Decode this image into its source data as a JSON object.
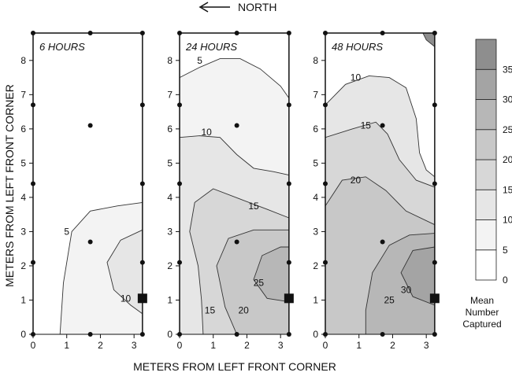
{
  "figure": {
    "north_label": "NORTH",
    "x_axis_label": "METERS FROM LEFT FRONT CORNER",
    "y_axis_label": "METERS FROM LEFT FRONT CORNER",
    "colorbar_title": [
      "Mean",
      "Number",
      "Captured"
    ],
    "icons": {
      "north_arrow": "left-arrow-icon",
      "trap": "filled-square-icon",
      "sample": "filled-circle-icon"
    }
  },
  "chart_data": [
    {
      "type": "contour",
      "title": "6 HOURS",
      "xlim": [
        0,
        3.3
      ],
      "ylim": [
        0,
        8.8
      ],
      "x_ticks": [
        0,
        1,
        2,
        3
      ],
      "y_ticks": [
        0,
        1,
        2,
        3,
        4,
        5,
        6,
        7,
        8
      ],
      "contour_labels": [
        {
          "value": 5,
          "x": 1.0,
          "y": 3.0
        },
        {
          "value": 10,
          "x": 2.75,
          "y": 1.05
        }
      ],
      "contours": [
        {
          "level": 5,
          "points": [
            [
              0.8,
              0
            ],
            [
              0.9,
              1.5
            ],
            [
              1.15,
              3.0
            ],
            [
              1.7,
              3.6
            ],
            [
              2.5,
              3.75
            ],
            [
              3.25,
              3.85
            ]
          ]
        },
        {
          "level": 10,
          "points": [
            [
              3.25,
              0.6
            ],
            [
              2.9,
              0.85
            ],
            [
              2.4,
              1.3
            ],
            [
              2.2,
              2.1
            ],
            [
              2.6,
              2.75
            ],
            [
              3.25,
              3.05
            ]
          ]
        }
      ],
      "sample_points": [
        [
          0,
          0
        ],
        [
          1.7,
          0
        ],
        [
          3.25,
          0
        ],
        [
          0,
          2.1
        ],
        [
          3.25,
          2.1
        ],
        [
          1.7,
          2.7
        ],
        [
          0,
          4.4
        ],
        [
          3.25,
          4.4
        ],
        [
          1.7,
          6.1
        ],
        [
          0,
          6.7
        ],
        [
          3.25,
          6.7
        ],
        [
          0,
          8.8
        ],
        [
          1.7,
          8.8
        ],
        [
          3.25,
          8.8
        ]
      ],
      "trap": [
        3.25,
        1.05
      ]
    },
    {
      "type": "contour",
      "title": "24 HOURS",
      "xlim": [
        0,
        3.3
      ],
      "ylim": [
        0,
        8.8
      ],
      "x_ticks": [
        0,
        1,
        2,
        3
      ],
      "y_ticks": [
        0,
        1,
        2,
        3,
        4,
        5,
        6,
        7,
        8
      ],
      "contour_labels": [
        {
          "value": 5,
          "x": 0.6,
          "y": 8.0
        },
        {
          "value": 10,
          "x": 0.8,
          "y": 5.9
        },
        {
          "value": 15,
          "x": 2.2,
          "y": 3.75
        },
        {
          "value": 15,
          "x": 0.9,
          "y": 0.7
        },
        {
          "value": 20,
          "x": 1.9,
          "y": 0.7
        },
        {
          "value": 25,
          "x": 2.35,
          "y": 1.5
        }
      ],
      "contours": [
        {
          "level": 5,
          "points": [
            [
              0,
              7.5
            ],
            [
              0.6,
              7.8
            ],
            [
              1.2,
              8.05
            ],
            [
              1.8,
              8.05
            ],
            [
              2.4,
              7.75
            ],
            [
              3.0,
              7.25
            ],
            [
              3.25,
              6.9
            ]
          ]
        },
        {
          "level": 10,
          "points": [
            [
              0,
              5.75
            ],
            [
              0.6,
              5.8
            ],
            [
              1.2,
              5.75
            ],
            [
              1.7,
              5.25
            ],
            [
              2.2,
              4.85
            ],
            [
              2.8,
              4.75
            ],
            [
              3.25,
              4.65
            ]
          ]
        },
        {
          "level": 15,
          "points": [
            [
              0.7,
              0
            ],
            [
              0.65,
              1.0
            ],
            [
              0.55,
              2.0
            ],
            [
              0.3,
              3.0
            ],
            [
              0.45,
              3.85
            ],
            [
              1.0,
              4.25
            ],
            [
              1.8,
              3.95
            ],
            [
              2.6,
              3.65
            ],
            [
              3.25,
              3.4
            ]
          ]
        },
        {
          "level": 20,
          "points": [
            [
              1.7,
              0
            ],
            [
              1.35,
              0.8
            ],
            [
              1.1,
              2.0
            ],
            [
              1.45,
              2.8
            ],
            [
              2.2,
              3.05
            ],
            [
              3.25,
              3.05
            ]
          ]
        },
        {
          "level": 25,
          "points": [
            [
              3.25,
              0.95
            ],
            [
              2.6,
              1.05
            ],
            [
              2.2,
              1.6
            ],
            [
              2.45,
              2.3
            ],
            [
              3.0,
              2.55
            ],
            [
              3.25,
              2.55
            ]
          ]
        }
      ],
      "sample_points": [
        [
          0,
          0
        ],
        [
          1.7,
          0
        ],
        [
          3.25,
          0
        ],
        [
          0,
          2.1
        ],
        [
          3.25,
          2.1
        ],
        [
          1.7,
          2.7
        ],
        [
          0,
          4.4
        ],
        [
          3.25,
          4.4
        ],
        [
          1.7,
          6.1
        ],
        [
          0,
          6.7
        ],
        [
          3.25,
          6.7
        ],
        [
          0,
          8.8
        ],
        [
          1.7,
          8.8
        ],
        [
          3.25,
          8.8
        ]
      ],
      "trap": [
        3.25,
        1.05
      ]
    },
    {
      "type": "contour",
      "title": "48 HOURS",
      "xlim": [
        0,
        3.3
      ],
      "ylim": [
        0,
        8.8
      ],
      "x_ticks": [
        0,
        1,
        2,
        3
      ],
      "y_ticks": [
        0,
        1,
        2,
        3,
        4,
        5,
        6,
        7,
        8
      ],
      "contour_labels": [
        {
          "value": 10,
          "x": 0.9,
          "y": 7.5
        },
        {
          "value": 15,
          "x": 1.2,
          "y": 6.1
        },
        {
          "value": 20,
          "x": 0.9,
          "y": 4.5
        },
        {
          "value": 25,
          "x": 1.9,
          "y": 1.0
        },
        {
          "value": 30,
          "x": 2.4,
          "y": 1.3
        }
      ],
      "contours": [
        {
          "level": 10,
          "points": [
            [
              0,
              6.7
            ],
            [
              0.6,
              7.3
            ],
            [
              1.3,
              7.55
            ],
            [
              1.9,
              7.5
            ],
            [
              2.4,
              7.2
            ],
            [
              2.7,
              6.3
            ],
            [
              2.8,
              5.3
            ],
            [
              3.0,
              4.8
            ],
            [
              3.25,
              4.6
            ]
          ]
        },
        {
          "level": 15,
          "points": [
            [
              0,
              5.75
            ],
            [
              0.8,
              6.0
            ],
            [
              1.5,
              6.2
            ],
            [
              1.85,
              5.85
            ],
            [
              2.2,
              5.1
            ],
            [
              2.7,
              4.5
            ],
            [
              3.25,
              4.3
            ]
          ]
        },
        {
          "level": 20,
          "points": [
            [
              0,
              3.75
            ],
            [
              0.5,
              4.5
            ],
            [
              1.2,
              4.6
            ],
            [
              1.8,
              4.2
            ],
            [
              2.4,
              3.6
            ],
            [
              3.25,
              3.2
            ]
          ]
        },
        {
          "level": 25,
          "points": [
            [
              1.2,
              0
            ],
            [
              1.2,
              0.7
            ],
            [
              1.4,
              1.8
            ],
            [
              1.9,
              2.6
            ],
            [
              2.5,
              2.9
            ],
            [
              3.25,
              2.95
            ]
          ]
        },
        {
          "level": 30,
          "points": [
            [
              3.25,
              0.85
            ],
            [
              2.6,
              1.1
            ],
            [
              2.25,
              1.8
            ],
            [
              2.6,
              2.45
            ],
            [
              3.25,
              2.55
            ]
          ]
        },
        {
          "level": 35,
          "points": [
            [
              2.9,
              8.8
            ],
            [
              3.0,
              8.6
            ],
            [
              3.25,
              8.4
            ]
          ]
        }
      ],
      "sample_points": [
        [
          0,
          0
        ],
        [
          1.7,
          0
        ],
        [
          3.25,
          0
        ],
        [
          0,
          2.1
        ],
        [
          3.25,
          2.1
        ],
        [
          1.7,
          2.7
        ],
        [
          0,
          4.4
        ],
        [
          3.25,
          4.4
        ],
        [
          1.7,
          6.1
        ],
        [
          0,
          6.7
        ],
        [
          3.25,
          6.7
        ],
        [
          0,
          8.8
        ],
        [
          1.7,
          8.8
        ],
        [
          3.25,
          8.8
        ]
      ],
      "trap": [
        3.25,
        1.05
      ]
    },
    {
      "type": "colorbar",
      "title": "Mean Number Captured",
      "ticks": [
        0,
        5,
        10,
        15,
        20,
        25,
        30,
        35
      ],
      "levels": [
        {
          "from": 0,
          "to": 5,
          "color": "#ffffff"
        },
        {
          "from": 5,
          "to": 10,
          "color": "#f3f3f3"
        },
        {
          "from": 10,
          "to": 15,
          "color": "#e6e6e6"
        },
        {
          "from": 15,
          "to": 20,
          "color": "#d7d7d7"
        },
        {
          "from": 20,
          "to": 25,
          "color": "#c8c8c8"
        },
        {
          "from": 25,
          "to": 30,
          "color": "#b7b7b7"
        },
        {
          "from": 30,
          "to": 35,
          "color": "#a4a4a4"
        },
        {
          "from": 35,
          "to": 40,
          "color": "#8e8e8e"
        }
      ]
    }
  ]
}
